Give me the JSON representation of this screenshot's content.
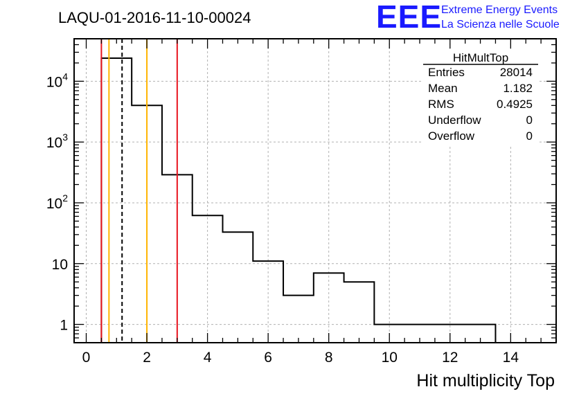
{
  "chart_data": {
    "type": "histogram",
    "title": "LAQU-01-2016-11-10-00024",
    "xlabel": "Hit multiplicity Top",
    "ylabel": "",
    "xlim": [
      -0.4,
      15.5
    ],
    "ylim": [
      0.5,
      50000
    ],
    "yscale": "log",
    "grid": true,
    "bin_edges": [
      0.5,
      1.5,
      2.5,
      3.5,
      4.5,
      5.5,
      6.5,
      7.5,
      8.5,
      9.5,
      10.5,
      11.5,
      12.5,
      13.5
    ],
    "values": [
      24000,
      4000,
      290,
      62,
      33,
      11,
      3,
      7,
      5,
      1,
      1,
      1,
      1
    ],
    "x_ticks": [
      0,
      2,
      4,
      6,
      8,
      10,
      12,
      14
    ],
    "x_tick_labels": [
      "0",
      "2",
      "4",
      "6",
      "8",
      "10",
      "12",
      "14"
    ],
    "y_ticks": [
      1,
      10,
      100,
      1000,
      10000
    ],
    "y_tick_labels": [
      {
        "base": "1",
        "exp": ""
      },
      {
        "base": "10",
        "exp": ""
      },
      {
        "base": "10",
        "exp": "2"
      },
      {
        "base": "10",
        "exp": "3"
      },
      {
        "base": "10",
        "exp": "4"
      }
    ],
    "vertical_lines": [
      {
        "x": 0.5,
        "color": "#e8141e",
        "style": "solid"
      },
      {
        "x": 0.75,
        "color": "#ffb400",
        "style": "solid"
      },
      {
        "x": 1.182,
        "color": "#000000",
        "style": "dashed"
      },
      {
        "x": 2.0,
        "color": "#ffb400",
        "style": "solid"
      },
      {
        "x": 3.0,
        "color": "#e8141e",
        "style": "solid"
      }
    ],
    "stats_box": {
      "name": "HitMultTop",
      "rows": [
        {
          "label": "Entries",
          "value": "28014"
        },
        {
          "label": "Mean",
          "value": "1.182"
        },
        {
          "label": "RMS",
          "value": "0.4925"
        },
        {
          "label": "Underflow",
          "value": "0"
        },
        {
          "label": "Overflow",
          "value": "0"
        }
      ]
    }
  },
  "logo": {
    "text": "EEE",
    "line1": "Extreme Energy Events",
    "line2": "La Scienza nelle Scuole",
    "color": "#1a1aff"
  }
}
